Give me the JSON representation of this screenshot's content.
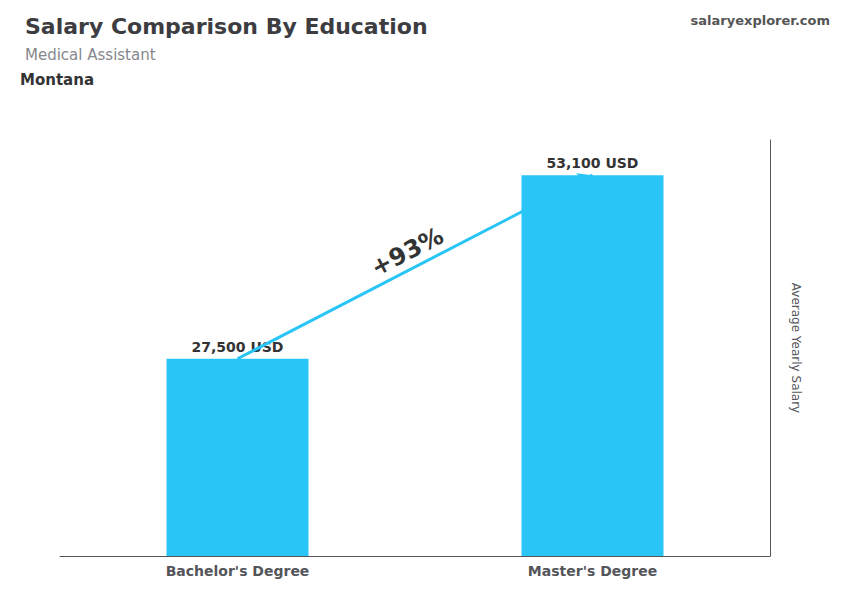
{
  "chart_data": {
    "type": "bar",
    "title": "Salary Comparison By Education",
    "subtitle": "Medical Assistant",
    "ylabel": "Average Yearly Salary",
    "categories": [
      "Bachelor's Degree",
      "Master's Degree"
    ],
    "values": [
      27500,
      53100
    ],
    "value_labels": [
      "27,500 USD",
      "53,100 USD"
    ],
    "data_labels": true,
    "color": "#29C5F6",
    "ylim": [
      0,
      58000
    ],
    "tick_labels": "x",
    "grid": false,
    "annotations": [
      "Montana",
      "+93%",
      "salaryexplorer.com"
    ]
  }
}
